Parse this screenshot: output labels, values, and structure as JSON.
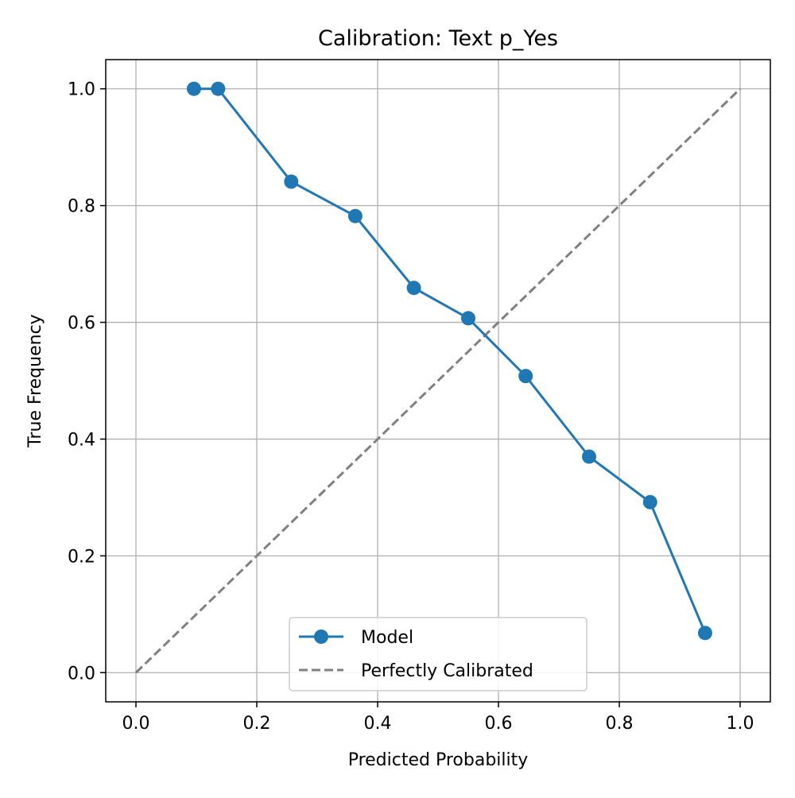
{
  "chart_data": {
    "type": "line",
    "title": "Calibration: Text p_Yes",
    "xlabel": "Predicted Probability",
    "ylabel": "True Frequency",
    "xlim": [
      -0.05,
      1.05
    ],
    "ylim": [
      -0.05,
      1.05
    ],
    "grid": true,
    "legend_position": "lower center",
    "x_ticks": [
      0.0,
      0.2,
      0.4,
      0.6,
      0.8,
      1.0
    ],
    "x_tick_labels": [
      "0.0",
      "0.2",
      "0.4",
      "0.6",
      "0.8",
      "1.0"
    ],
    "y_ticks": [
      0.0,
      0.2,
      0.4,
      0.6,
      0.8,
      1.0
    ],
    "y_tick_labels": [
      "0.0",
      "0.2",
      "0.4",
      "0.6",
      "0.8",
      "1.0"
    ],
    "series": [
      {
        "name": "Model",
        "style": "line-marker",
        "color": "#1f77b4",
        "x": [
          0.096,
          0.136,
          0.257,
          0.363,
          0.46,
          0.55,
          0.645,
          0.75,
          0.851,
          0.942
        ],
        "y": [
          1.0,
          1.0,
          0.841,
          0.782,
          0.659,
          0.607,
          0.508,
          0.37,
          0.292,
          0.068
        ]
      },
      {
        "name": "Perfectly Calibrated",
        "style": "dashed",
        "color": "#808080",
        "x": [
          0.0,
          1.0
        ],
        "y": [
          0.0,
          1.0
        ]
      }
    ]
  }
}
